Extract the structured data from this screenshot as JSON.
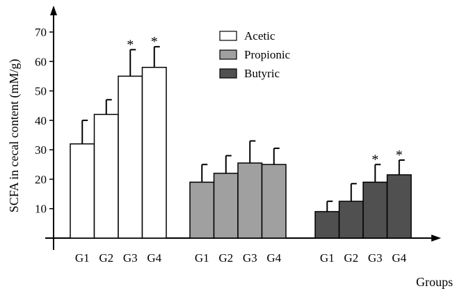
{
  "chart_data": {
    "type": "bar",
    "ylabel": "SCFA in cecal content (mM/g)",
    "xlabel": "Groups",
    "ylim": [
      0,
      70
    ],
    "yticks": [
      10,
      20,
      30,
      40,
      50,
      60,
      70
    ],
    "categories": [
      "G1",
      "G2",
      "G3",
      "G4"
    ],
    "series": [
      {
        "name": "Acetic",
        "color": "#ffffff",
        "values": [
          32,
          42,
          55,
          58
        ],
        "errors": [
          8,
          5,
          9,
          7
        ],
        "significant": [
          false,
          false,
          true,
          true
        ]
      },
      {
        "name": "Propionic",
        "color": "#a0a0a0",
        "values": [
          19,
          22,
          25.5,
          25
        ],
        "errors": [
          6,
          6,
          7.5,
          5.5
        ],
        "significant": [
          false,
          false,
          false,
          false
        ]
      },
      {
        "name": "Butyric",
        "color": "#505050",
        "values": [
          9,
          12.5,
          19,
          21.5
        ],
        "errors": [
          3.5,
          6,
          6,
          5
        ],
        "significant": [
          false,
          false,
          true,
          true
        ]
      }
    ],
    "significance_marker": "*",
    "legend_position": "top-center",
    "grid": false
  }
}
